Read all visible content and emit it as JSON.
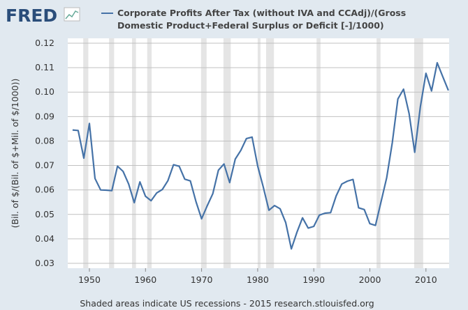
{
  "logo": "FRED",
  "footer": "Shaded areas indicate US recessions - 2015 research.stlouisfed.org",
  "chart_data": {
    "type": "line",
    "title": "",
    "legend": [
      "Corporate Profits After Tax (without IVA and CCAdj)/(Gross",
      "Domestic Product+Federal Surplus or Deficit [-]/1000)"
    ],
    "legend_placement": "top",
    "ylabel": "(Bil. of $/(Bil. of $+Mil. of $/1000))",
    "xlabel": "",
    "ylim": [
      0.03,
      0.12
    ],
    "xlim": [
      1946.2,
      2014
    ],
    "yticks": [
      "0.03",
      "0.04",
      "0.05",
      "0.06",
      "0.07",
      "0.08",
      "0.09",
      "0.10",
      "0.11",
      "0.12"
    ],
    "xticks": [
      "1950",
      "1960",
      "1970",
      "1980",
      "1990",
      "2000",
      "2010"
    ],
    "grid": true,
    "line_color": "#4572a7",
    "recession_color": "#e5e5e5",
    "recessions": [
      [
        1948.9,
        1949.8
      ],
      [
        1953.5,
        1954.4
      ],
      [
        1957.6,
        1958.3
      ],
      [
        1960.3,
        1961.1
      ],
      [
        1969.9,
        1970.9
      ],
      [
        1973.9,
        1975.2
      ],
      [
        1980.0,
        1980.5
      ],
      [
        1981.5,
        1982.9
      ],
      [
        1990.5,
        1991.2
      ],
      [
        2001.2,
        2001.9
      ],
      [
        2007.9,
        2009.5
      ]
    ],
    "x": [
      1947,
      1948,
      1949,
      1950,
      1951,
      1952,
      1953,
      1954,
      1955,
      1956,
      1957,
      1958,
      1959,
      1960,
      1961,
      1962,
      1963,
      1964,
      1965,
      1966,
      1967,
      1968,
      1969,
      1970,
      1971,
      1972,
      1973,
      1974,
      1975,
      1976,
      1977,
      1978,
      1979,
      1980,
      1981,
      1982,
      1983,
      1984,
      1985,
      1986,
      1987,
      1988,
      1989,
      1990,
      1991,
      1992,
      1993,
      1994,
      1995,
      1996,
      1997,
      1998,
      1999,
      2000,
      2001,
      2002,
      2003,
      2004,
      2005,
      2006,
      2007,
      2008,
      2009,
      2010,
      2011,
      2012,
      2013,
      2014
    ],
    "y": [
      0.0845,
      0.0843,
      0.073,
      0.0872,
      0.0647,
      0.06,
      0.0599,
      0.0597,
      0.0697,
      0.0676,
      0.0624,
      0.0548,
      0.0633,
      0.0574,
      0.0556,
      0.0588,
      0.0602,
      0.0638,
      0.0703,
      0.0697,
      0.0644,
      0.0637,
      0.0552,
      0.0482,
      0.0535,
      0.0585,
      0.0681,
      0.0706,
      0.063,
      0.0726,
      0.0762,
      0.081,
      0.0816,
      0.0698,
      0.0612,
      0.0517,
      0.0536,
      0.0523,
      0.0467,
      0.0359,
      0.0427,
      0.0486,
      0.0444,
      0.0451,
      0.0497,
      0.0505,
      0.0507,
      0.0576,
      0.0624,
      0.0636,
      0.0643,
      0.0527,
      0.052,
      0.0462,
      0.0455,
      0.0553,
      0.065,
      0.0793,
      0.0972,
      0.1012,
      0.0912,
      0.0754,
      0.094,
      0.1077,
      0.1005,
      0.112,
      0.1063,
      0.1007
    ]
  }
}
